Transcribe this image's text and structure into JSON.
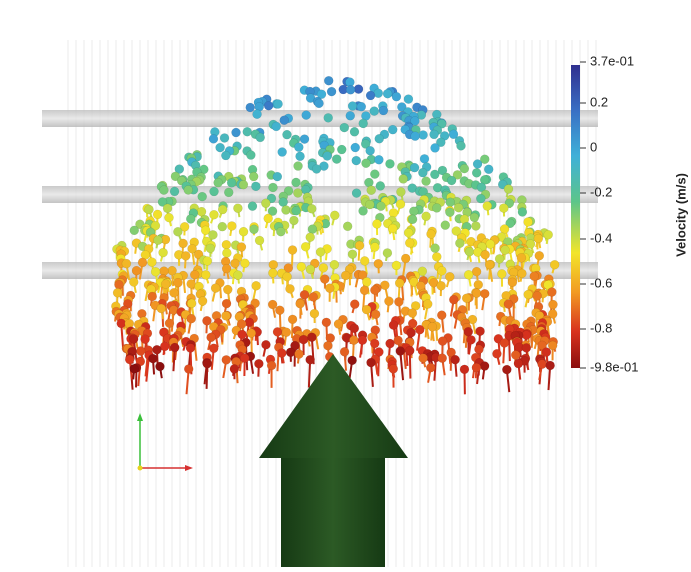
{
  "colorbar": {
    "title": "Velocity (m/s)",
    "labels": [
      "3.7e-01",
      "0.2",
      "0",
      "-0.2",
      "-0.4",
      "-0.6",
      "-0.8",
      "-9.8e-01"
    ]
  }
}
